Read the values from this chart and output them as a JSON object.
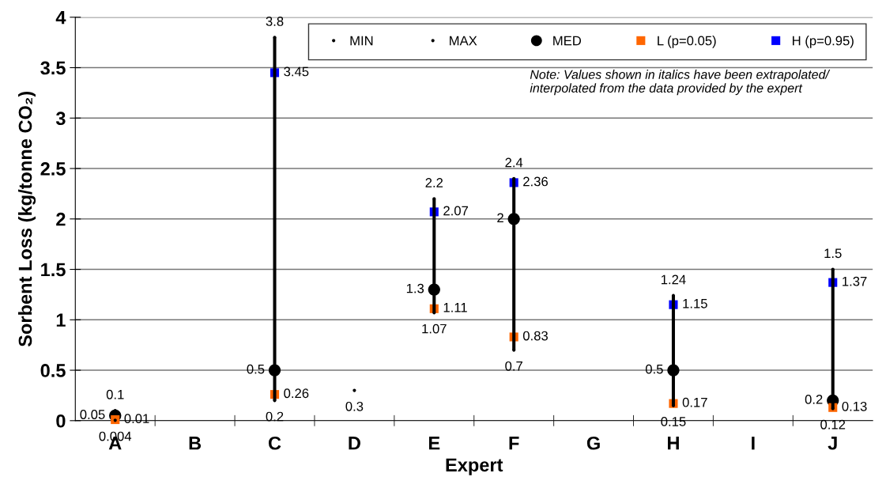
{
  "chart_data": {
    "type": "scatter",
    "xlabel": "Expert",
    "ylabel": "Sorbent Loss (kg/tonne CO₂)",
    "categories": [
      "A",
      "B",
      "C",
      "D",
      "E",
      "F",
      "G",
      "H",
      "I",
      "J"
    ],
    "ylim": [
      0,
      4
    ],
    "yticks": [
      0,
      0.5,
      1,
      1.5,
      2,
      2.5,
      3,
      3.5,
      4
    ],
    "grid": "y",
    "legend": "top right",
    "series": [
      {
        "type": "bar",
        "color": "#000000",
        "base": [
          null,
          null,
          0.2,
          null,
          1.07,
          0.7,
          null,
          0.15,
          null,
          0.12
        ],
        "values": [
          null,
          null,
          3.6,
          null,
          1.13,
          1.7,
          null,
          1.09,
          null,
          1.38
        ]
      },
      {
        "name": "MIN",
        "marker": "circle",
        "color": "#000000",
        "values": [
          0.004,
          null,
          0.2,
          0.3,
          1.07,
          0.7,
          null,
          0.15,
          null,
          0.12
        ],
        "value_labels": [
          "0.004",
          null,
          "0.2",
          "0.3",
          "1.07",
          "0.7",
          null,
          "0.15",
          null,
          "0.12"
        ]
      },
      {
        "name": "MAX",
        "marker": "circle",
        "color": "#000000",
        "values": [
          0.1,
          null,
          3.8,
          null,
          2.2,
          2.4,
          null,
          1.24,
          null,
          1.5
        ],
        "value_labels": [
          "0.1",
          null,
          "3.8",
          null,
          "2.2",
          "2.4",
          null,
          "1.24",
          null,
          "1.5"
        ]
      },
      {
        "name": "MED",
        "marker": "circle",
        "color": "#000000",
        "values": [
          0.05,
          null,
          0.5,
          null,
          1.3,
          2,
          null,
          0.5,
          null,
          0.2
        ],
        "value_labels": [
          "0.05",
          null,
          "0.5",
          null,
          "1.3",
          "2",
          null,
          "0.5",
          null,
          "0.2"
        ]
      },
      {
        "name": "L (p=0.05)",
        "marker": "square",
        "color": "#ff6600",
        "values": [
          0.01,
          null,
          0.26,
          null,
          1.11,
          0.83,
          null,
          0.17,
          null,
          0.13
        ],
        "value_labels": [
          "0.01",
          null,
          "0.26",
          null,
          "1.11",
          "0.83",
          null,
          "0.17",
          null,
          "0.13"
        ]
      },
      {
        "name": "H (p=0.95)",
        "marker": "square",
        "color": "#0000ff",
        "values": [
          null,
          null,
          3.45,
          null,
          2.07,
          2.36,
          null,
          1.15,
          null,
          1.37
        ],
        "value_labels": [
          null,
          null,
          "3.45",
          null,
          "2.07",
          "2.36",
          null,
          "1.15",
          null,
          "1.37"
        ]
      }
    ],
    "annotations": [
      "Note: Values shown in italics have been extrapolated/\ninterpolated from the data provided by the expert"
    ]
  }
}
